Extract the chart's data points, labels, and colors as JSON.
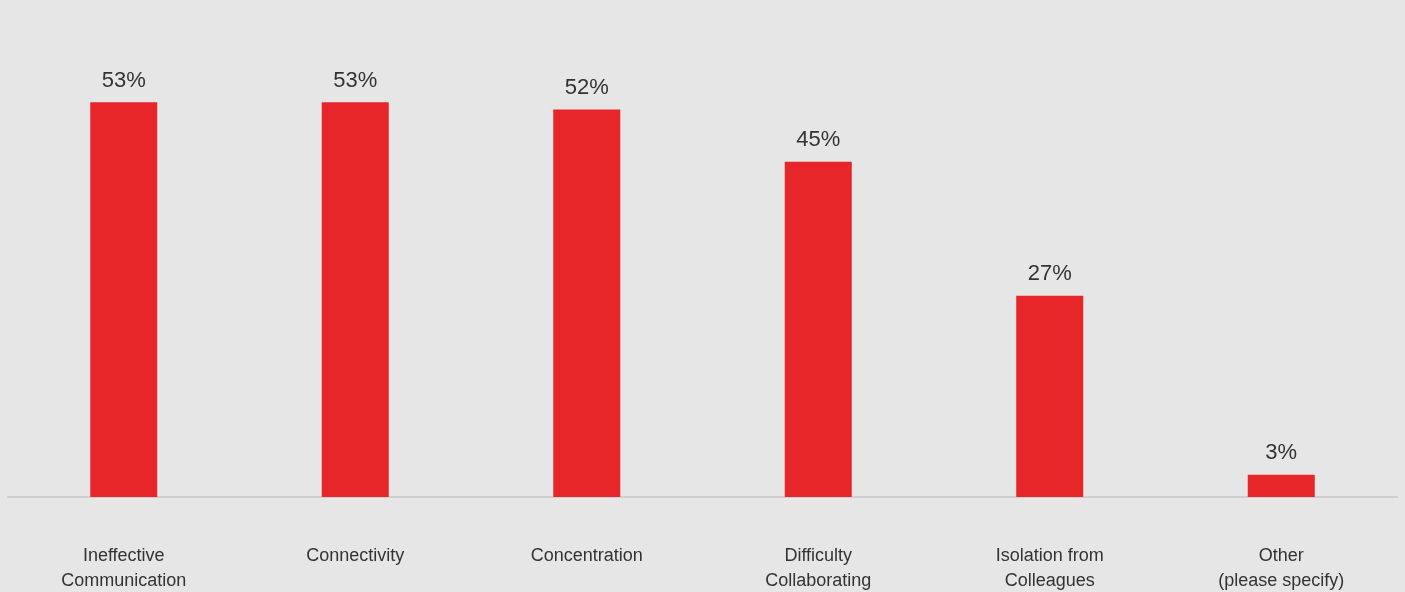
{
  "chart_data": {
    "type": "bar",
    "categories": [
      "Ineffective\nCommunication",
      "Connectivity",
      "Concentration",
      "Difficulty\nCollaborating",
      "Isolation from\nColleagues",
      "Other\n(please specify)"
    ],
    "values": [
      53,
      53,
      52,
      45,
      27,
      3
    ],
    "value_labels": [
      "53%",
      "53%",
      "52%",
      "45%",
      "27%",
      "3%"
    ],
    "color": "#e62629",
    "grid": false,
    "tick_labels": "x"
  }
}
